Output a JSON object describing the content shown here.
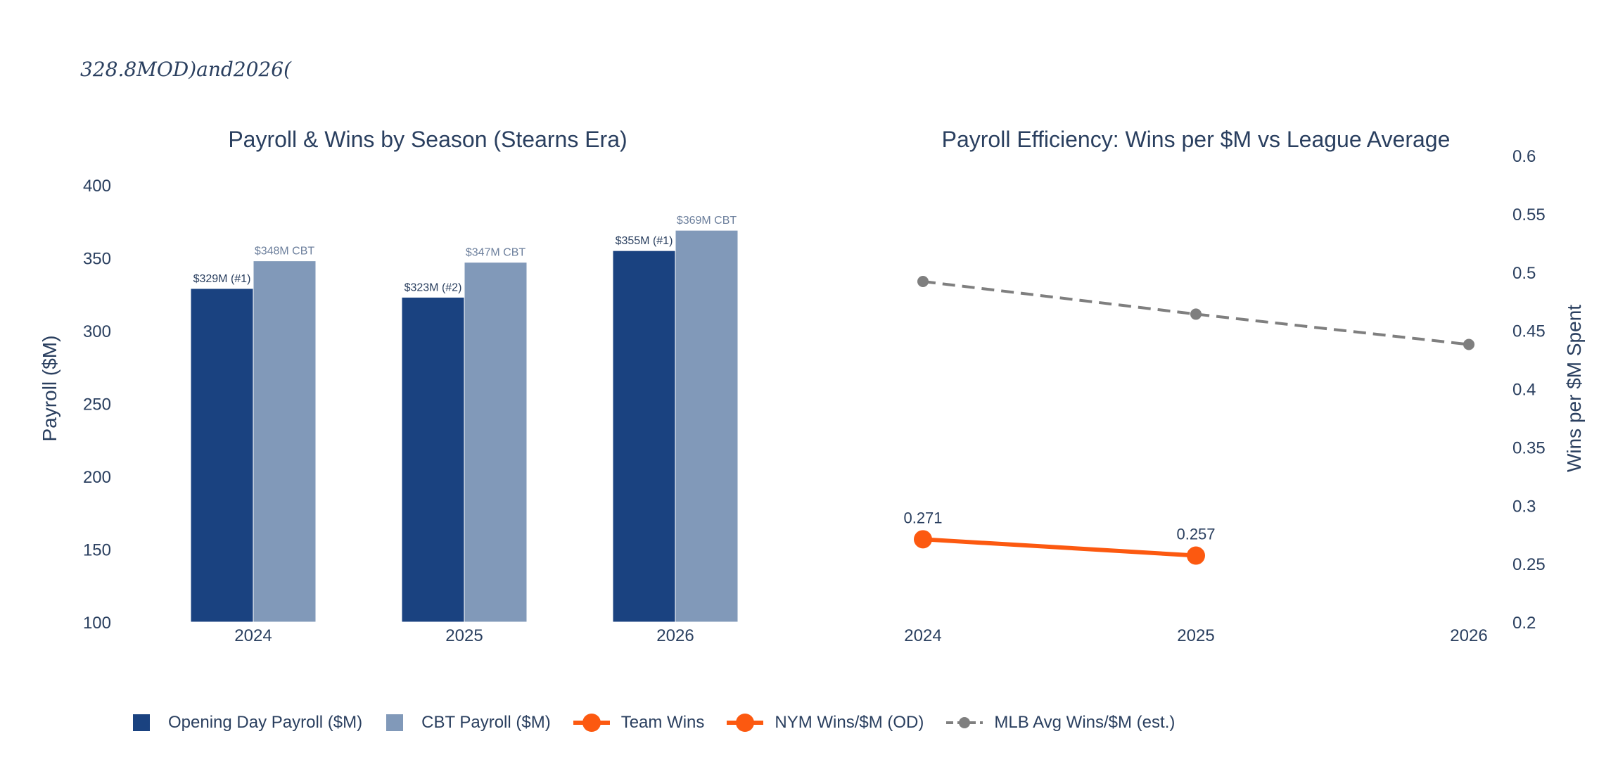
{
  "header": {
    "title": "328.8MOD)and2026("
  },
  "colors": {
    "od_payroll": "#1a4280",
    "cbt_payroll": "#8199b9",
    "team_line": "#fc5910",
    "league_line": "#7f7f7f",
    "text": "#2a3f5f"
  },
  "chart_data": [
    {
      "type": "bar",
      "title": "Payroll & Wins by Season (Stearns Era)",
      "ylabel": "Payroll ($M)",
      "xlabel": "",
      "ylim": [
        100,
        400
      ],
      "yticks": [
        "100",
        "150",
        "200",
        "250",
        "300",
        "350",
        "400"
      ],
      "categories": [
        "2024",
        "2025",
        "2026"
      ],
      "series": [
        {
          "name": "Opening Day Payroll ($M)",
          "values": [
            329,
            323,
            355
          ],
          "labels": [
            "$329M (#1)",
            "$323M (#2)",
            "$355M (#1)"
          ]
        },
        {
          "name": "CBT Payroll ($M)",
          "values": [
            348,
            347,
            369
          ],
          "labels": [
            "$348M CBT",
            "$347M CBT",
            "$369M CBT"
          ]
        }
      ]
    },
    {
      "type": "line",
      "title": "Payroll Efficiency: Wins per $M vs League Average",
      "ylabel": "Wins per $M Spent",
      "xlabel": "",
      "ylim": [
        0.2,
        0.6
      ],
      "yticks": [
        "0.2",
        "0.25",
        "0.3",
        "0.35",
        "0.4",
        "0.45",
        "0.5",
        "0.55",
        "0.6"
      ],
      "x": [
        "2024",
        "2025",
        "2026"
      ],
      "series": [
        {
          "name": "NYM Wins/$M (OD)",
          "values": [
            0.271,
            0.257,
            null
          ],
          "labels": [
            "0.271",
            "0.257",
            ""
          ]
        },
        {
          "name": "MLB Avg Wins/$M (est.)",
          "values": [
            0.492,
            0.464,
            0.438
          ]
        }
      ]
    }
  ],
  "legend": {
    "items": [
      {
        "label": "Opening Day Payroll ($M)",
        "symbol": "square",
        "color": "#1a4280"
      },
      {
        "label": "CBT Payroll ($M)",
        "symbol": "square",
        "color": "#8199b9"
      },
      {
        "label": "Team Wins",
        "symbol": "line-marker",
        "color": "#fc5910"
      },
      {
        "label": "NYM Wins/$M (OD)",
        "symbol": "line-marker",
        "color": "#fc5910"
      },
      {
        "label": "MLB Avg Wins/$M (est.)",
        "symbol": "dash-marker",
        "color": "#7f7f7f"
      }
    ]
  }
}
